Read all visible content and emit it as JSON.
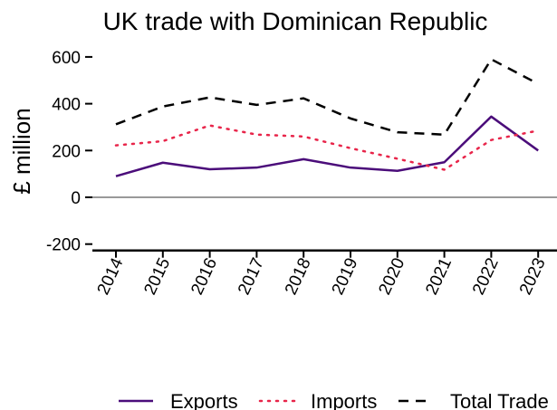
{
  "chart_data": {
    "type": "line",
    "title": "UK trade with Dominican Republic",
    "xlabel": "",
    "ylabel": "£ million",
    "categories": [
      "2014",
      "2015",
      "2016",
      "2017",
      "2018",
      "2019",
      "2020",
      "2021",
      "2022",
      "2023"
    ],
    "yticks": [
      "-200",
      "0",
      "200",
      "400",
      "600"
    ],
    "ylim": [
      -200,
      600
    ],
    "legend_position": "bottom",
    "grid": false,
    "series": [
      {
        "name": "Exports",
        "values": [
          90,
          148,
          120,
          127,
          163,
          127,
          113,
          150,
          345,
          200
        ],
        "color": "#4b0d7a",
        "dash": "solid"
      },
      {
        "name": "Imports",
        "values": [
          222,
          240,
          307,
          268,
          260,
          210,
          165,
          118,
          245,
          285
        ],
        "color": "#e8254a",
        "dash": "dotted"
      },
      {
        "name": "Total Trade",
        "values": [
          312,
          388,
          427,
          395,
          423,
          337,
          278,
          268,
          590,
          485
        ],
        "color": "#000000",
        "dash": "dashed"
      }
    ]
  }
}
